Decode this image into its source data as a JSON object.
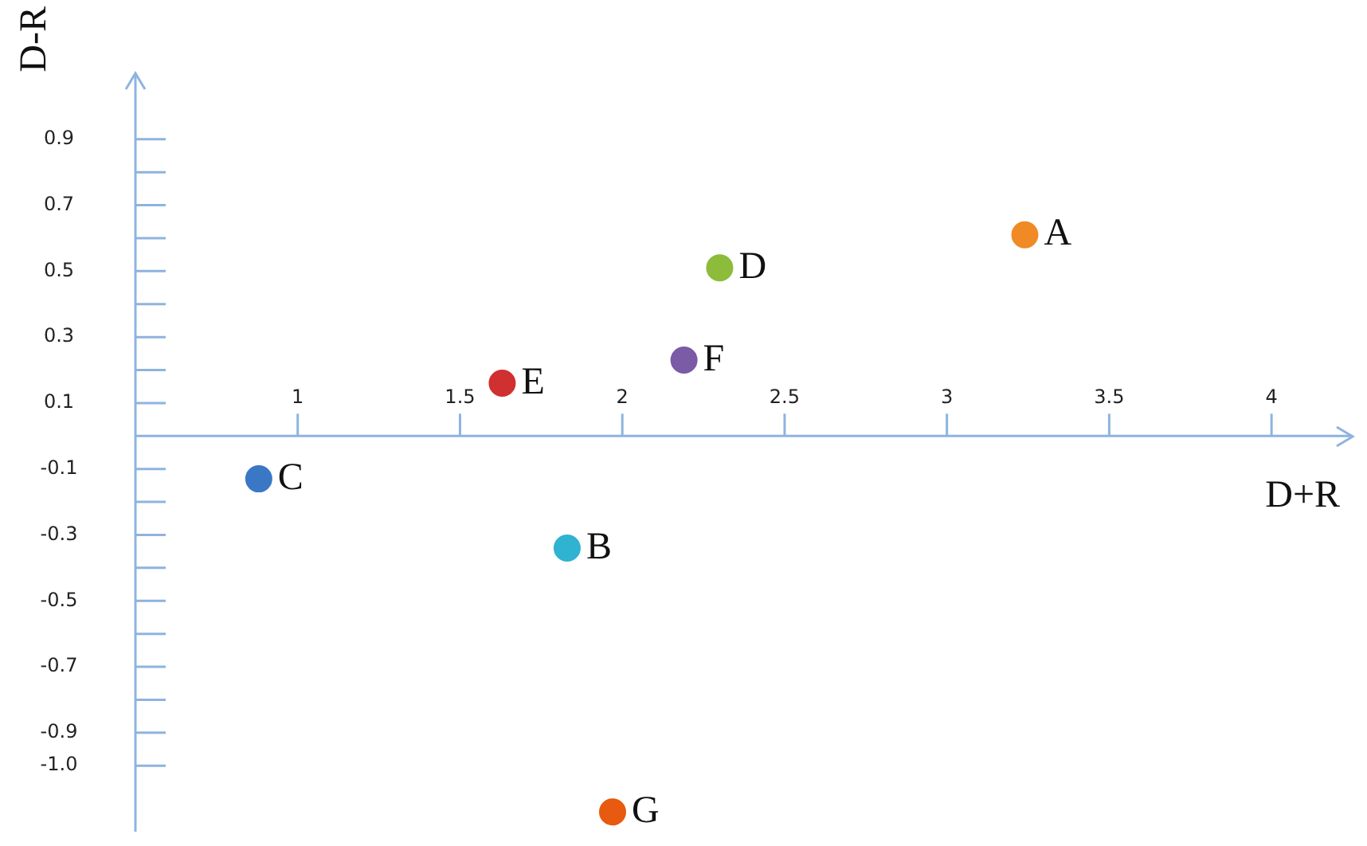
{
  "chart_data": {
    "type": "scatter",
    "xlabel": "D+R",
    "ylabel": "D-R",
    "marker": "circle",
    "grid": false,
    "legend": false,
    "xlim": [
      0.5,
      4.25
    ],
    "ylim": [
      -1.2,
      1.1
    ],
    "xticks": [
      1,
      1.5,
      2,
      2.5,
      3,
      3.5,
      4
    ],
    "yticks": [
      0.9,
      0.7,
      0.5,
      0.3,
      0.1,
      -0.1,
      -0.3,
      -0.5,
      -0.7,
      -0.9,
      {
        "value": -1,
        "label": "-1.0"
      }
    ],
    "series": [
      {
        "name": "A",
        "color": "#f08a24",
        "x": [
          3.24
        ],
        "values": [
          0.61
        ]
      },
      {
        "name": "B",
        "color": "#2fb3d1",
        "x": [
          1.83
        ],
        "values": [
          -0.34
        ]
      },
      {
        "name": "C",
        "color": "#3a78c6",
        "x": [
          0.88
        ],
        "values": [
          -0.13
        ]
      },
      {
        "name": "D",
        "color": "#8cbc3a",
        "x": [
          2.3
        ],
        "values": [
          0.51
        ]
      },
      {
        "name": "E",
        "color": "#d03030",
        "x": [
          1.63
        ],
        "values": [
          0.16
        ]
      },
      {
        "name": "F",
        "color": "#7b5aa6",
        "x": [
          2.19
        ],
        "values": [
          0.23
        ]
      },
      {
        "name": "G",
        "color": "#e85a10",
        "x": [
          1.97
        ],
        "values": [
          -1.14
        ]
      }
    ]
  }
}
